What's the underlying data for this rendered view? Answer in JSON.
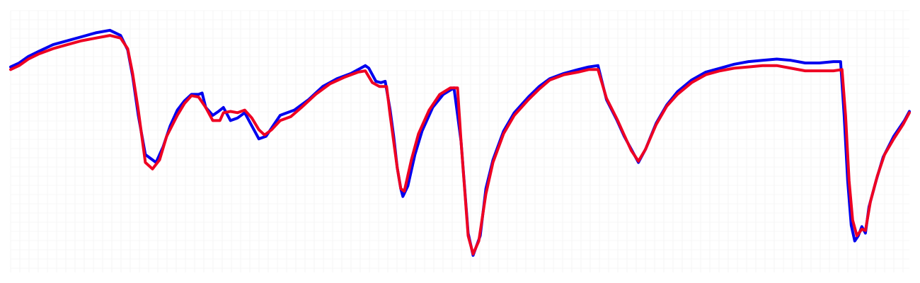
{
  "chart_data": {
    "type": "line",
    "title": "",
    "xlabel": "",
    "ylabel": "",
    "xlim": [
      0,
      1267
    ],
    "ylim": [
      0,
      1
    ],
    "grid": true,
    "legend": "none",
    "series": [
      {
        "color": "#0000ee",
        "points": [
          [
            0,
            0.785
          ],
          [
            12,
            0.8
          ],
          [
            25,
            0.825
          ],
          [
            40,
            0.845
          ],
          [
            60,
            0.87
          ],
          [
            80,
            0.885
          ],
          [
            100,
            0.9
          ],
          [
            120,
            0.915
          ],
          [
            140,
            0.925
          ],
          [
            155,
            0.905
          ],
          [
            165,
            0.85
          ],
          [
            172,
            0.75
          ],
          [
            180,
            0.6
          ],
          [
            190,
            0.45
          ],
          [
            205,
            0.42
          ],
          [
            215,
            0.48
          ],
          [
            225,
            0.56
          ],
          [
            235,
            0.62
          ],
          [
            245,
            0.655
          ],
          [
            255,
            0.68
          ],
          [
            265,
            0.68
          ],
          [
            270,
            0.685
          ],
          [
            275,
            0.63
          ],
          [
            285,
            0.6
          ],
          [
            293,
            0.615
          ],
          [
            300,
            0.63
          ],
          [
            310,
            0.58
          ],
          [
            320,
            0.59
          ],
          [
            330,
            0.61
          ],
          [
            340,
            0.56
          ],
          [
            350,
            0.51
          ],
          [
            360,
            0.52
          ],
          [
            370,
            0.56
          ],
          [
            380,
            0.6
          ],
          [
            390,
            0.61
          ],
          [
            400,
            0.62
          ],
          [
            420,
            0.66
          ],
          [
            440,
            0.71
          ],
          [
            460,
            0.74
          ],
          [
            480,
            0.76
          ],
          [
            490,
            0.775
          ],
          [
            500,
            0.79
          ],
          [
            505,
            0.78
          ],
          [
            515,
            0.73
          ],
          [
            522,
            0.725
          ],
          [
            528,
            0.73
          ],
          [
            535,
            0.62
          ],
          [
            540,
            0.52
          ],
          [
            545,
            0.4
          ],
          [
            550,
            0.32
          ],
          [
            553,
            0.29
          ],
          [
            560,
            0.33
          ],
          [
            570,
            0.45
          ],
          [
            580,
            0.54
          ],
          [
            595,
            0.63
          ],
          [
            610,
            0.68
          ],
          [
            625,
            0.705
          ],
          [
            635,
            0.5
          ],
          [
            645,
            0.15
          ],
          [
            652,
            0.065
          ],
          [
            662,
            0.14
          ],
          [
            670,
            0.32
          ],
          [
            680,
            0.43
          ],
          [
            695,
            0.54
          ],
          [
            710,
            0.61
          ],
          [
            730,
            0.67
          ],
          [
            745,
            0.71
          ],
          [
            760,
            0.74
          ],
          [
            780,
            0.76
          ],
          [
            800,
            0.775
          ],
          [
            815,
            0.785
          ],
          [
            828,
            0.79
          ],
          [
            840,
            0.66
          ],
          [
            855,
            0.58
          ],
          [
            865,
            0.52
          ],
          [
            875,
            0.47
          ],
          [
            885,
            0.42
          ],
          [
            895,
            0.47
          ],
          [
            910,
            0.57
          ],
          [
            925,
            0.64
          ],
          [
            940,
            0.69
          ],
          [
            960,
            0.735
          ],
          [
            980,
            0.765
          ],
          [
            1000,
            0.78
          ],
          [
            1020,
            0.795
          ],
          [
            1040,
            0.805
          ],
          [
            1060,
            0.81
          ],
          [
            1080,
            0.815
          ],
          [
            1100,
            0.81
          ],
          [
            1120,
            0.8
          ],
          [
            1140,
            0.8
          ],
          [
            1160,
            0.805
          ],
          [
            1170,
            0.805
          ],
          [
            1175,
            0.6
          ],
          [
            1180,
            0.35
          ],
          [
            1185,
            0.18
          ],
          [
            1190,
            0.12
          ],
          [
            1195,
            0.14
          ],
          [
            1200,
            0.175
          ],
          [
            1205,
            0.15
          ],
          [
            1210,
            0.25
          ],
          [
            1220,
            0.35
          ],
          [
            1230,
            0.44
          ],
          [
            1245,
            0.52
          ],
          [
            1260,
            0.58
          ],
          [
            1267,
            0.615
          ]
        ]
      },
      {
        "color": "#ee0022",
        "points": [
          [
            0,
            0.775
          ],
          [
            12,
            0.79
          ],
          [
            25,
            0.815
          ],
          [
            40,
            0.835
          ],
          [
            60,
            0.855
          ],
          [
            80,
            0.87
          ],
          [
            100,
            0.885
          ],
          [
            120,
            0.895
          ],
          [
            140,
            0.905
          ],
          [
            155,
            0.895
          ],
          [
            165,
            0.855
          ],
          [
            172,
            0.76
          ],
          [
            180,
            0.62
          ],
          [
            190,
            0.42
          ],
          [
            200,
            0.395
          ],
          [
            210,
            0.43
          ],
          [
            220,
            0.52
          ],
          [
            235,
            0.6
          ],
          [
            245,
            0.645
          ],
          [
            255,
            0.675
          ],
          [
            265,
            0.67
          ],
          [
            275,
            0.63
          ],
          [
            285,
            0.58
          ],
          [
            295,
            0.58
          ],
          [
            300,
            0.61
          ],
          [
            310,
            0.615
          ],
          [
            320,
            0.61
          ],
          [
            330,
            0.62
          ],
          [
            340,
            0.59
          ],
          [
            350,
            0.545
          ],
          [
            358,
            0.525
          ],
          [
            368,
            0.545
          ],
          [
            380,
            0.58
          ],
          [
            395,
            0.595
          ],
          [
            410,
            0.63
          ],
          [
            430,
            0.68
          ],
          [
            450,
            0.72
          ],
          [
            470,
            0.745
          ],
          [
            490,
            0.765
          ],
          [
            500,
            0.77
          ],
          [
            510,
            0.725
          ],
          [
            520,
            0.71
          ],
          [
            530,
            0.71
          ],
          [
            535,
            0.6
          ],
          [
            540,
            0.5
          ],
          [
            545,
            0.4
          ],
          [
            550,
            0.32
          ],
          [
            555,
            0.31
          ],
          [
            565,
            0.43
          ],
          [
            575,
            0.53
          ],
          [
            590,
            0.62
          ],
          [
            605,
            0.68
          ],
          [
            620,
            0.705
          ],
          [
            630,
            0.705
          ],
          [
            635,
            0.5
          ],
          [
            645,
            0.14
          ],
          [
            652,
            0.07
          ],
          [
            660,
            0.12
          ],
          [
            670,
            0.3
          ],
          [
            680,
            0.42
          ],
          [
            695,
            0.53
          ],
          [
            710,
            0.6
          ],
          [
            730,
            0.66
          ],
          [
            745,
            0.7
          ],
          [
            760,
            0.735
          ],
          [
            780,
            0.755
          ],
          [
            800,
            0.765
          ],
          [
            815,
            0.775
          ],
          [
            828,
            0.775
          ],
          [
            840,
            0.665
          ],
          [
            855,
            0.585
          ],
          [
            865,
            0.525
          ],
          [
            875,
            0.465
          ],
          [
            885,
            0.425
          ],
          [
            895,
            0.47
          ],
          [
            910,
            0.565
          ],
          [
            925,
            0.635
          ],
          [
            940,
            0.68
          ],
          [
            960,
            0.725
          ],
          [
            980,
            0.755
          ],
          [
            1000,
            0.77
          ],
          [
            1020,
            0.78
          ],
          [
            1040,
            0.785
          ],
          [
            1060,
            0.79
          ],
          [
            1080,
            0.79
          ],
          [
            1100,
            0.78
          ],
          [
            1120,
            0.77
          ],
          [
            1140,
            0.77
          ],
          [
            1160,
            0.77
          ],
          [
            1172,
            0.775
          ],
          [
            1177,
            0.6
          ],
          [
            1182,
            0.35
          ],
          [
            1187,
            0.2
          ],
          [
            1193,
            0.14
          ],
          [
            1200,
            0.165
          ],
          [
            1205,
            0.16
          ],
          [
            1212,
            0.27
          ],
          [
            1222,
            0.37
          ],
          [
            1232,
            0.45
          ],
          [
            1245,
            0.51
          ],
          [
            1258,
            0.565
          ],
          [
            1267,
            0.61
          ]
        ]
      }
    ]
  }
}
